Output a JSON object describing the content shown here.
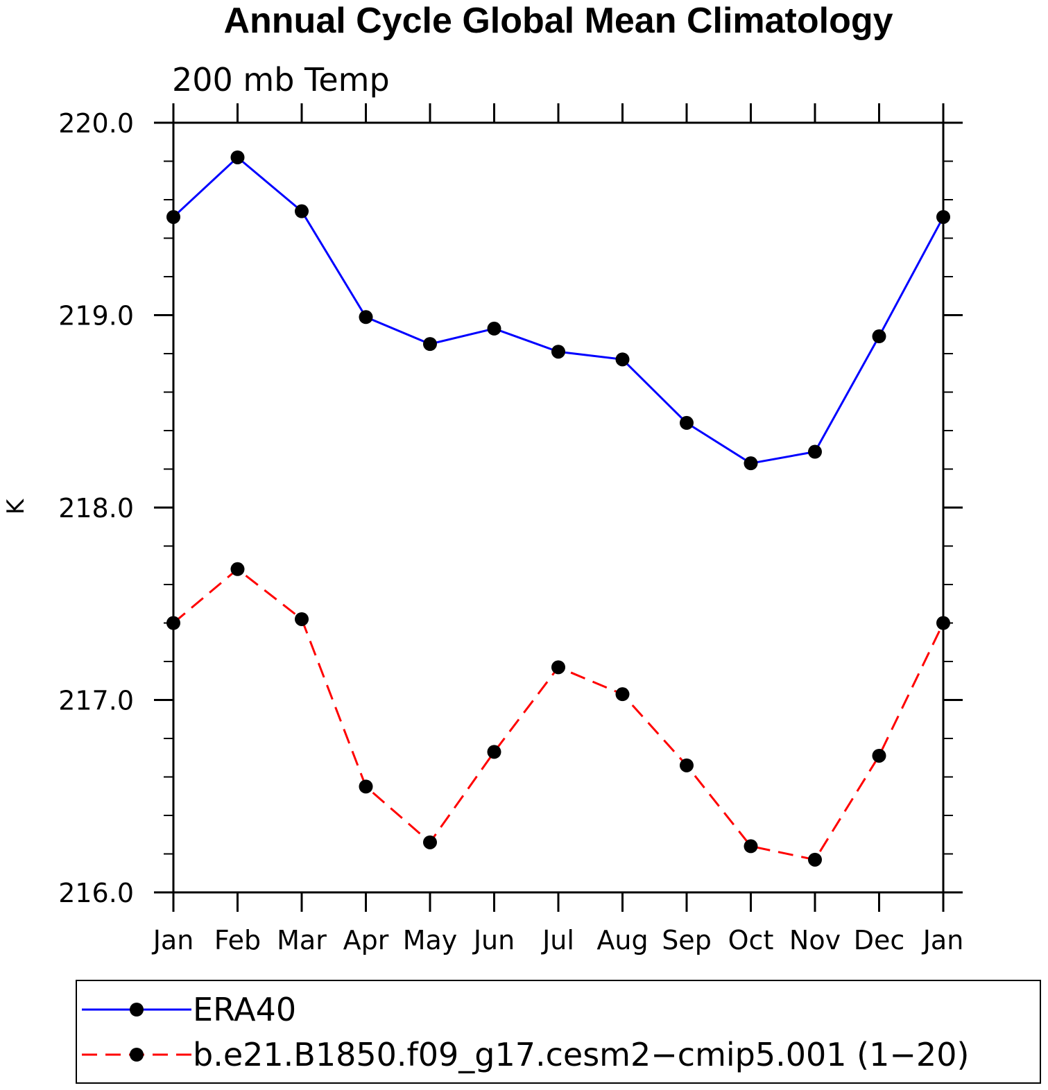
{
  "chart_data": {
    "type": "line",
    "title": "Annual Cycle Global Mean Climatology",
    "subtitle": "200 mb Temp",
    "xlabel": "",
    "ylabel": "K",
    "categories": [
      "Jan",
      "Feb",
      "Mar",
      "Apr",
      "May",
      "Jun",
      "Jul",
      "Aug",
      "Sep",
      "Oct",
      "Nov",
      "Dec",
      "Jan"
    ],
    "ylim": [
      216.0,
      220.0
    ],
    "yticks": [
      "216.0",
      "217.0",
      "218.0",
      "219.0",
      "220.0"
    ],
    "grid": false,
    "legend_position": "bottom",
    "series": [
      {
        "name": "ERA40",
        "color": "#0000ff",
        "dash": "solid",
        "values": [
          219.51,
          219.82,
          219.54,
          218.99,
          218.85,
          218.93,
          218.81,
          218.77,
          218.44,
          218.23,
          218.29,
          218.89,
          219.51
        ]
      },
      {
        "name": "b.e21.B1850.f09_g17.cesm2−cmip5.001 (1−20)",
        "color": "#ff0000",
        "dash": "dashed",
        "values": [
          217.4,
          217.68,
          217.42,
          216.55,
          216.26,
          216.73,
          217.17,
          217.03,
          216.66,
          216.24,
          216.17,
          216.71,
          217.4
        ]
      }
    ]
  }
}
